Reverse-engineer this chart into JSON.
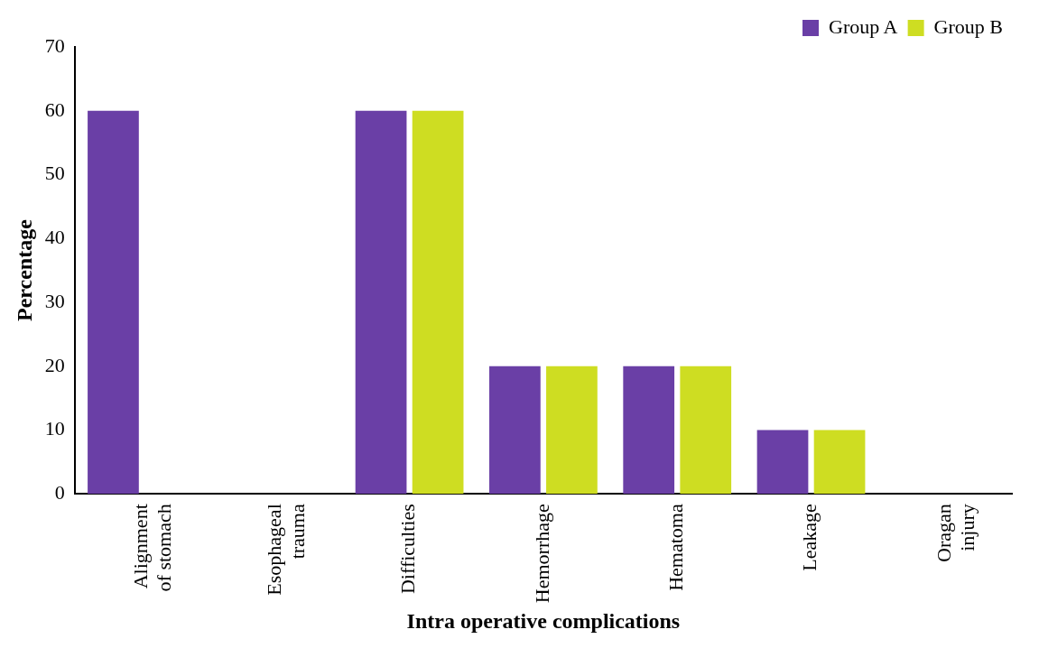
{
  "chart_data": {
    "type": "bar",
    "xlabel": "Intra operative complications",
    "ylabel": "Percentage",
    "categories": [
      "Alignment of stomach",
      "Esophageal trauma",
      "Difficulties",
      "Hemorrhage",
      "Hematoma",
      "Leakage",
      "Oragan injury"
    ],
    "series": [
      {
        "name": "Group A",
        "color": "#6a3fa6",
        "values": [
          60,
          0,
          60,
          20,
          20,
          10,
          0
        ]
      },
      {
        "name": "Group B",
        "color": "#cedd22",
        "values": [
          0,
          0,
          60,
          20,
          20,
          10,
          0
        ]
      }
    ],
    "ylim": [
      0,
      70
    ],
    "yticks": [
      0,
      10,
      20,
      30,
      40,
      50,
      60,
      70
    ],
    "grid": false,
    "legend": "top right"
  }
}
